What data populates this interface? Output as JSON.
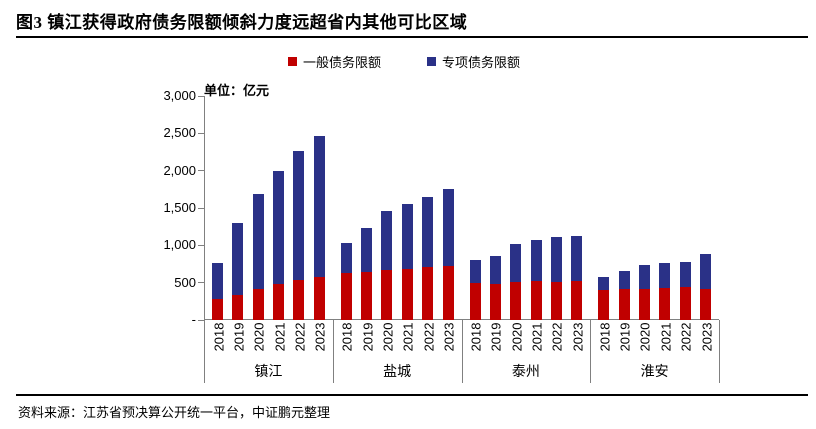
{
  "title": "图3 镇江获得政府债务限额倾斜力度远超省内其他可比区域",
  "unit_label": "单位：亿元",
  "legend": [
    {
      "label": "一般债务限额",
      "color": "#C00000"
    },
    {
      "label": "专项债务限额",
      "color": "#2A3187"
    }
  ],
  "source": "资料来源：江苏省预决算公开统一平台，中证鹏元整理",
  "colors": {
    "axis": "#808080",
    "text": "#000000",
    "rule": "#000000",
    "background": "#FFFFFF"
  },
  "chart_data": {
    "type": "bar",
    "stacked": true,
    "title": "图3 镇江获得政府债务限额倾斜力度远超省内其他可比区域",
    "unit": "亿元",
    "ylabel": "单位：亿元",
    "ylim": [
      0,
      3000
    ],
    "y_tick_labels": [
      "3,000",
      "2,500",
      "2,000",
      "1,500",
      "1,000",
      "500",
      "-"
    ],
    "y_tick_values": [
      3000,
      2500,
      2000,
      1500,
      1000,
      500,
      0
    ],
    "grid": false,
    "legend_position": "top-center",
    "groups": [
      "镇江",
      "盐城",
      "泰州",
      "淮安"
    ],
    "years": [
      "2018",
      "2019",
      "2020",
      "2021",
      "2022",
      "2023"
    ],
    "series": [
      {
        "name": "一般债务限额",
        "color": "#C00000",
        "values": {
          "镇江": [
            280,
            330,
            410,
            480,
            540,
            575
          ],
          "盐城": [
            630,
            645,
            670,
            685,
            710,
            720
          ],
          "泰州": [
            490,
            480,
            505,
            520,
            515,
            520
          ],
          "淮安": [
            400,
            415,
            415,
            430,
            440,
            410
          ]
        }
      },
      {
        "name": "专项债务限额",
        "color": "#2A3187",
        "values": {
          "镇江": [
            480,
            970,
            1275,
            1515,
            1725,
            1885
          ],
          "盐城": [
            405,
            590,
            795,
            870,
            940,
            1035
          ],
          "泰州": [
            320,
            380,
            510,
            550,
            595,
            600
          ],
          "淮安": [
            180,
            245,
            315,
            340,
            340,
            480
          ]
        }
      }
    ],
    "totals": {
      "镇江": [
        760,
        1300,
        1685,
        1995,
        2265,
        2460
      ],
      "盐城": [
        1035,
        1235,
        1465,
        1555,
        1650,
        1755
      ],
      "泰州": [
        810,
        860,
        1015,
        1070,
        1110,
        1120
      ],
      "淮安": [
        580,
        660,
        730,
        770,
        780,
        890
      ]
    }
  }
}
